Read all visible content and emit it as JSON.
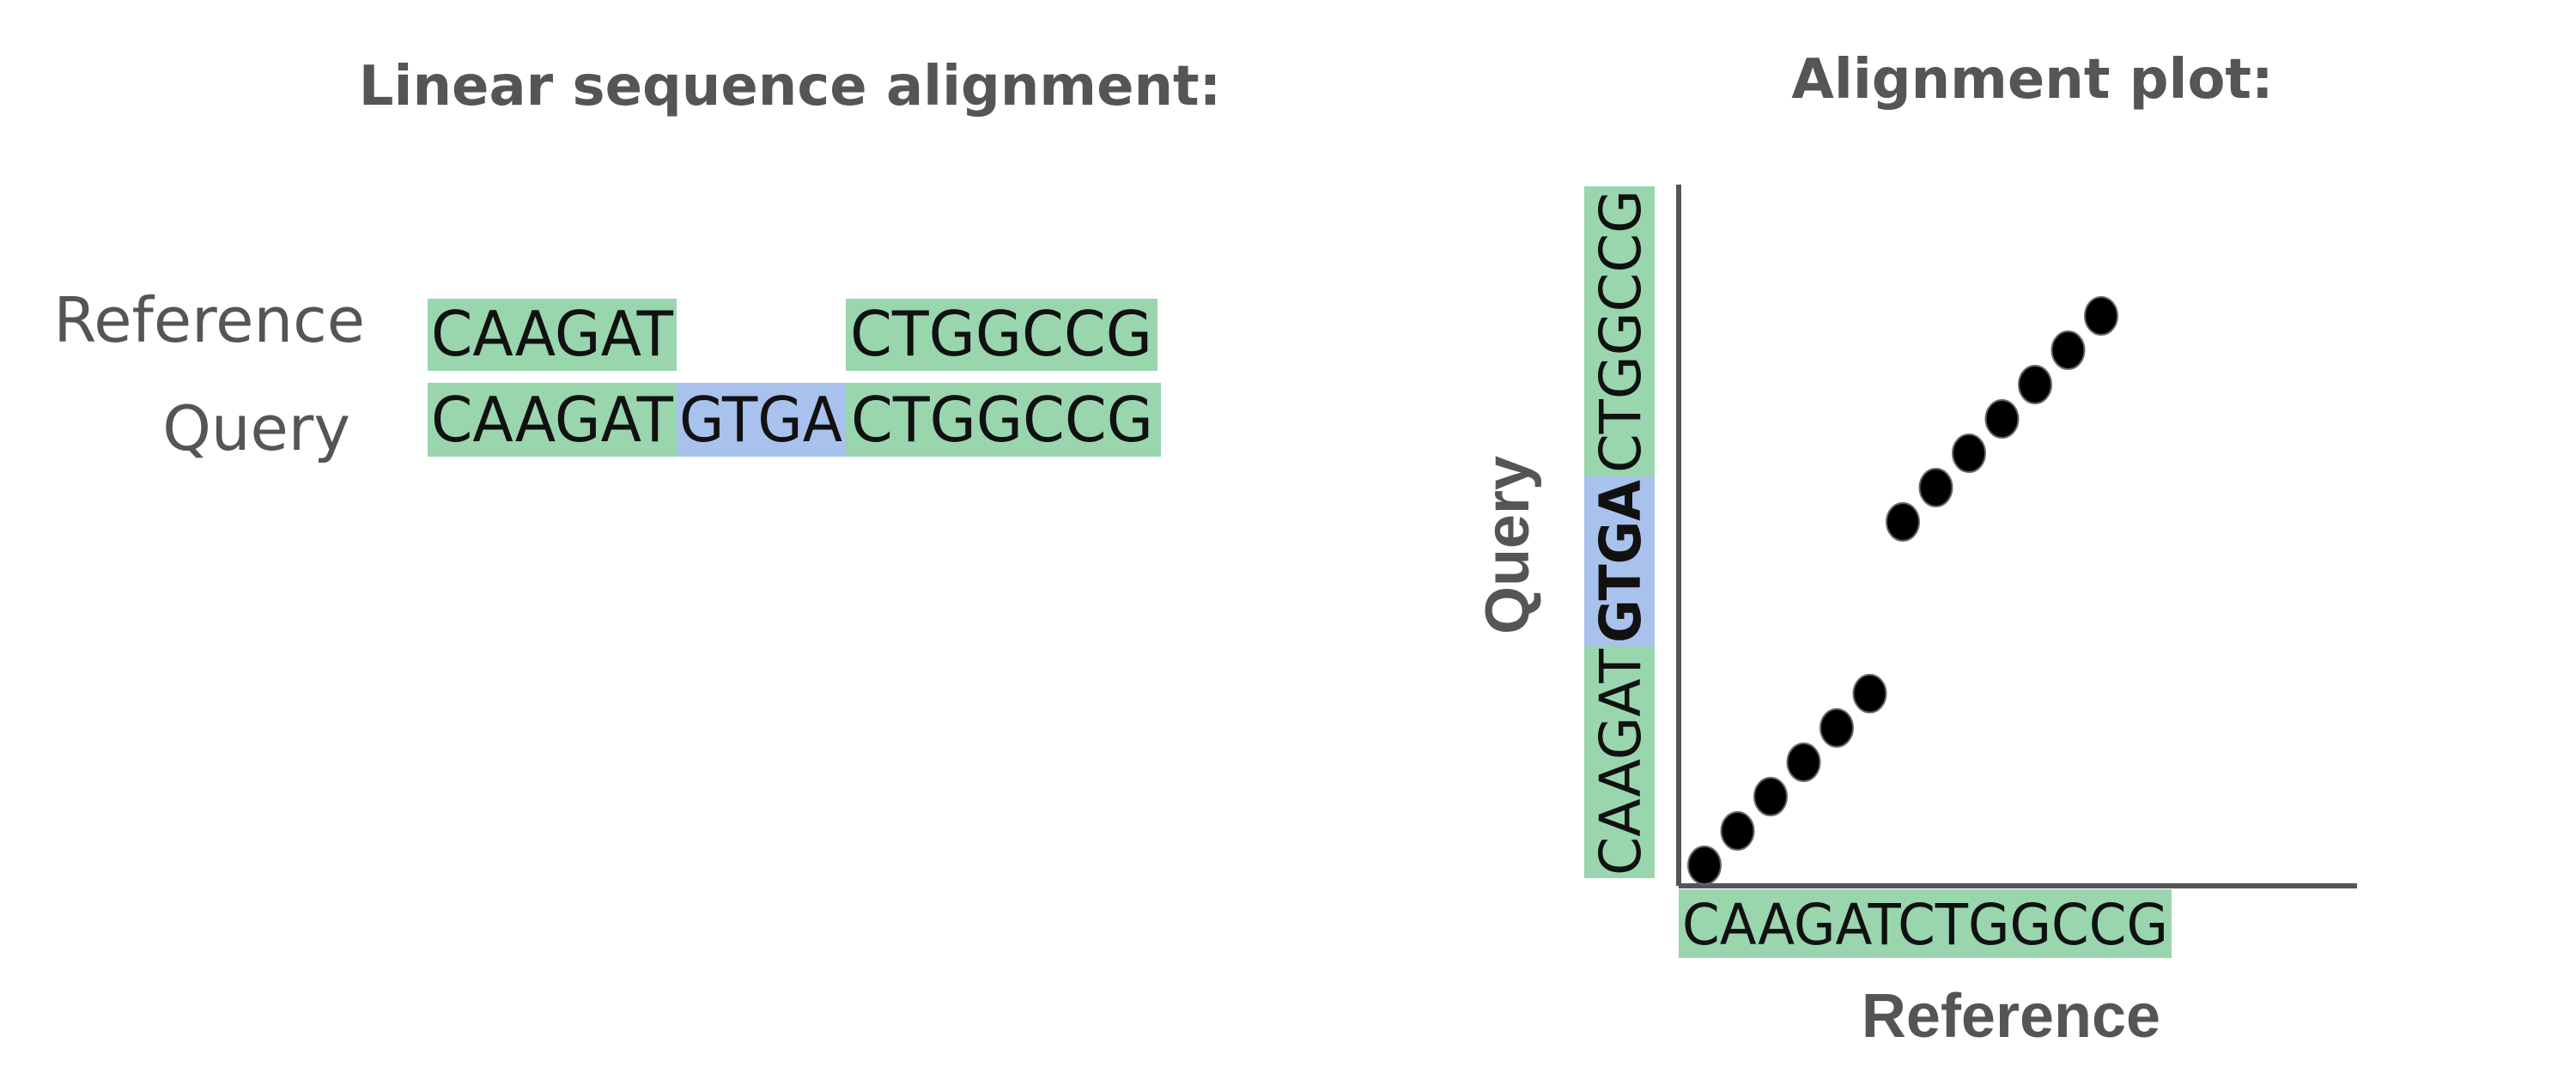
{
  "linear": {
    "title": "Linear sequence alignment:",
    "reference_label": "Reference",
    "query_label": "Query",
    "reference_segments": [
      "CAAGAT",
      "CTGGCCG"
    ],
    "query_segments": [
      "CAAGAT",
      "GTGA",
      "CTGGCCG"
    ]
  },
  "plot": {
    "title": "Alignment plot:",
    "x_label": "Reference",
    "y_label": "Query",
    "x_sequence": "CAAGATCTGGCCG",
    "y_segments": [
      "CAAGAT",
      "GTGA",
      "CTGGCCG"
    ],
    "match_points": [
      {
        "ref": 0,
        "query": 0
      },
      {
        "ref": 1,
        "query": 1
      },
      {
        "ref": 2,
        "query": 2
      },
      {
        "ref": 3,
        "query": 3
      },
      {
        "ref": 4,
        "query": 4
      },
      {
        "ref": 5,
        "query": 5
      },
      {
        "ref": 6,
        "query": 10
      },
      {
        "ref": 7,
        "query": 11
      },
      {
        "ref": 8,
        "query": 12
      },
      {
        "ref": 9,
        "query": 13
      },
      {
        "ref": 10,
        "query": 14
      },
      {
        "ref": 11,
        "query": 15
      },
      {
        "ref": 12,
        "query": 16
      }
    ]
  },
  "colors": {
    "match": "#99d6ae",
    "insertion": "#a9c1ed",
    "text_gray": "#555555",
    "dot": "#000000",
    "axis": "#555555"
  }
}
